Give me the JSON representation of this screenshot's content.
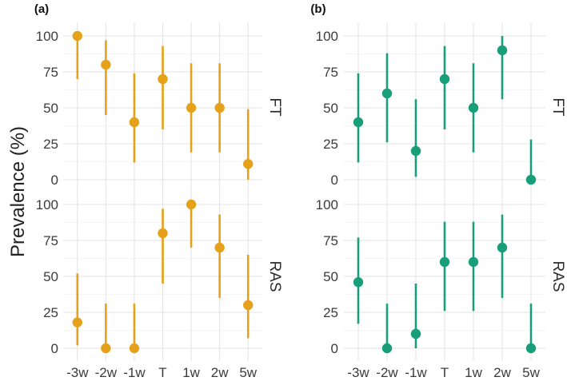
{
  "chart_data": {
    "type": "scatter",
    "style": "point-range",
    "ylabel": "Prevalence  (%)",
    "ylim": [
      0,
      100
    ],
    "y_ticks": [
      0,
      25,
      50,
      75,
      100
    ],
    "categories": [
      "-3w",
      "-2w",
      "-1w",
      "T",
      "1w",
      "2w",
      "5w"
    ],
    "rows": [
      "FT",
      "RAS"
    ],
    "panels": [
      {
        "label": "(a)",
        "color": "#E6A11B",
        "facets": [
          {
            "name": "FT",
            "points": [
              {
                "x": "-3w",
                "y": 100,
                "lo": 70,
                "hi": 100
              },
              {
                "x": "-2w",
                "y": 80,
                "lo": 45,
                "hi": 97
              },
              {
                "x": "-1w",
                "y": 40,
                "lo": 12,
                "hi": 74
              },
              {
                "x": "T",
                "y": 70,
                "lo": 35,
                "hi": 93
              },
              {
                "x": "1w",
                "y": 50,
                "lo": 19,
                "hi": 81
              },
              {
                "x": "2w",
                "y": 50,
                "lo": 19,
                "hi": 81
              },
              {
                "x": "5w",
                "y": 11,
                "lo": 0,
                "hi": 49
              }
            ]
          },
          {
            "name": "RAS",
            "points": [
              {
                "x": "-3w",
                "y": 18,
                "lo": 2,
                "hi": 52
              },
              {
                "x": "-2w",
                "y": 0,
                "lo": 0,
                "hi": 31
              },
              {
                "x": "-1w",
                "y": 0,
                "lo": 0,
                "hi": 31
              },
              {
                "x": "T",
                "y": 80,
                "lo": 45,
                "hi": 97
              },
              {
                "x": "1w",
                "y": 100,
                "lo": 70,
                "hi": 100
              },
              {
                "x": "2w",
                "y": 70,
                "lo": 35,
                "hi": 93
              },
              {
                "x": "5w",
                "y": 30,
                "lo": 7,
                "hi": 65
              }
            ]
          }
        ]
      },
      {
        "label": "(b)",
        "color": "#189E78",
        "facets": [
          {
            "name": "FT",
            "points": [
              {
                "x": "-3w",
                "y": 40,
                "lo": 12,
                "hi": 74
              },
              {
                "x": "-2w",
                "y": 60,
                "lo": 26,
                "hi": 88
              },
              {
                "x": "-1w",
                "y": 20,
                "lo": 2,
                "hi": 56
              },
              {
                "x": "T",
                "y": 70,
                "lo": 35,
                "hi": 93
              },
              {
                "x": "1w",
                "y": 50,
                "lo": 19,
                "hi": 81
              },
              {
                "x": "2w",
                "y": 90,
                "lo": 56,
                "hi": 100
              },
              {
                "x": "5w",
                "y": 0,
                "lo": 0,
                "hi": 28
              }
            ]
          },
          {
            "name": "RAS",
            "points": [
              {
                "x": "-3w",
                "y": 46,
                "lo": 17,
                "hi": 77
              },
              {
                "x": "-2w",
                "y": 0,
                "lo": 0,
                "hi": 31
              },
              {
                "x": "-1w",
                "y": 10,
                "lo": 0,
                "hi": 45
              },
              {
                "x": "T",
                "y": 60,
                "lo": 26,
                "hi": 88
              },
              {
                "x": "1w",
                "y": 60,
                "lo": 26,
                "hi": 88
              },
              {
                "x": "2w",
                "y": 70,
                "lo": 35,
                "hi": 93
              },
              {
                "x": "5w",
                "y": 0,
                "lo": 0,
                "hi": 31
              }
            ]
          }
        ]
      }
    ]
  }
}
